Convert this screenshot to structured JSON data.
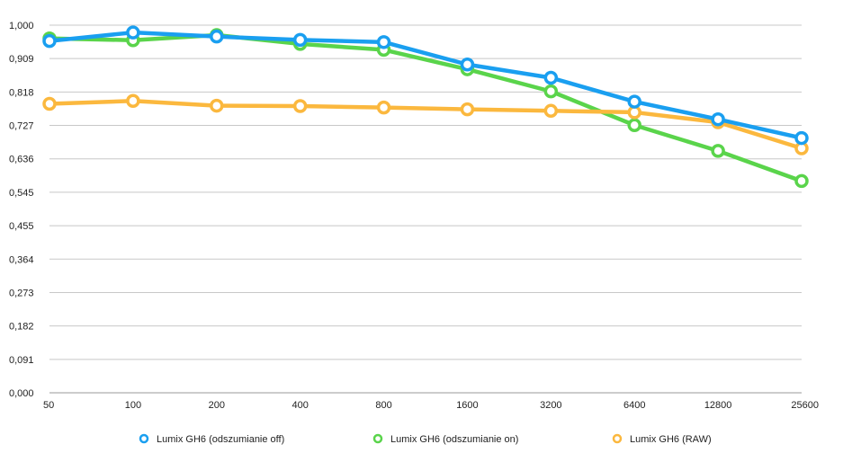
{
  "chart_data": {
    "type": "line",
    "title": "",
    "xlabel": "",
    "ylabel": "",
    "categories": [
      "50",
      "100",
      "200",
      "400",
      "800",
      "1600",
      "3200",
      "6400",
      "12800",
      "25600"
    ],
    "y_ticks": [
      "0,000",
      "0,091",
      "0,182",
      "0,273",
      "0,364",
      "0,455",
      "0,545",
      "0,636",
      "0,727",
      "0,818",
      "0,909",
      "1,000"
    ],
    "ylim": [
      0,
      1.0
    ],
    "grid": true,
    "legend_position": "bottom",
    "series": [
      {
        "name": "Lumix GH6 (odszumianie off)",
        "color": "#1a9ff0",
        "values": [
          0.957,
          0.98,
          0.969,
          0.96,
          0.954,
          0.893,
          0.857,
          0.792,
          0.744,
          0.693
        ]
      },
      {
        "name": "Lumix GH6 (odszumianie on)",
        "color": "#5ad44b",
        "values": [
          0.964,
          0.959,
          0.973,
          0.949,
          0.933,
          0.88,
          0.82,
          0.728,
          0.658,
          0.576
        ]
      },
      {
        "name": "Lumix GH6 (RAW)",
        "color": "#fbb83e",
        "values": [
          0.786,
          0.794,
          0.781,
          0.78,
          0.776,
          0.771,
          0.767,
          0.763,
          0.736,
          0.665
        ]
      }
    ]
  }
}
